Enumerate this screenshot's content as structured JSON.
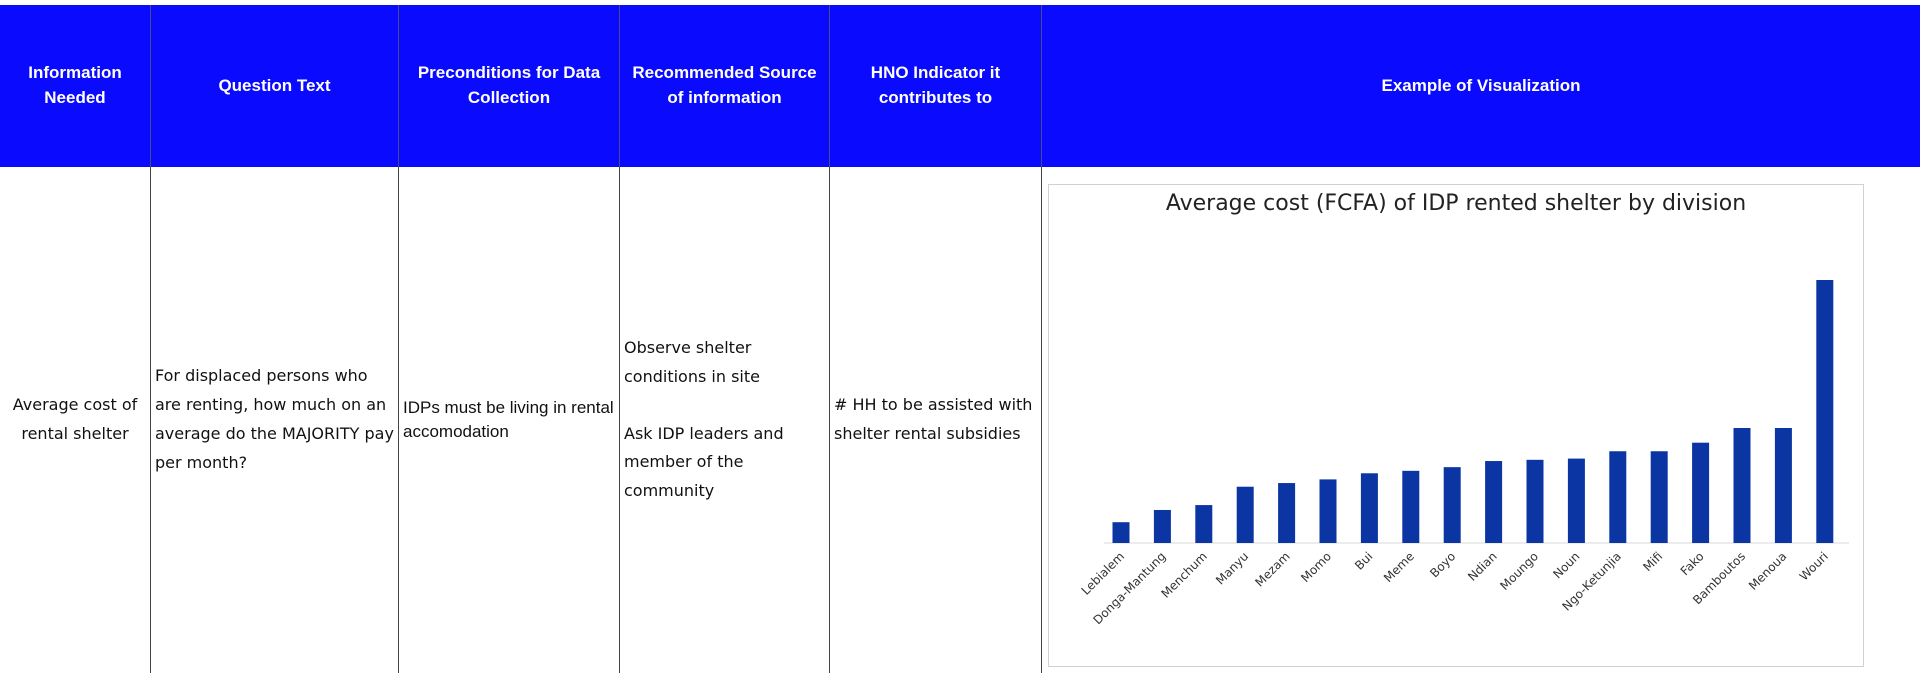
{
  "table": {
    "headers": [
      "Information Needed",
      "Question Text",
      "Preconditions for Data Collection",
      "Recommended Source of information",
      "HNO Indicator it contributes to",
      "Example of Visualization"
    ],
    "rows": [
      [
        "Average cost of rental shelter",
        "For displaced persons who are renting, how much on an average do the MAJORITY pay per month?",
        "IDPs must be living in rental accomodation",
        [
          "Observe shelter conditions in site",
          "Ask IDP leaders and member of the community"
        ],
        "# HH to be assisted with shelter rental subsidies"
      ]
    ]
  },
  "chart_data": {
    "type": "bar",
    "title": "Average cost (FCFA) of IDP rented shelter by division",
    "color": "#0a35a3",
    "categories": [
      "Lebialem",
      "Donga-Mantung",
      "Menchum",
      "Manyu",
      "Mezam",
      "Momo",
      "Bui",
      "Meme",
      "Boyo",
      "Ndian",
      "Moungo",
      "Noun",
      "Ngo-Ketunjia",
      "Mifi",
      "Fako",
      "Bamboutos",
      "Menoua",
      "Wouri"
    ],
    "values": [
      17,
      27,
      31,
      46,
      49,
      52,
      57,
      59,
      62,
      67,
      68,
      69,
      75,
      75,
      82,
      94,
      94,
      215
    ]
  }
}
